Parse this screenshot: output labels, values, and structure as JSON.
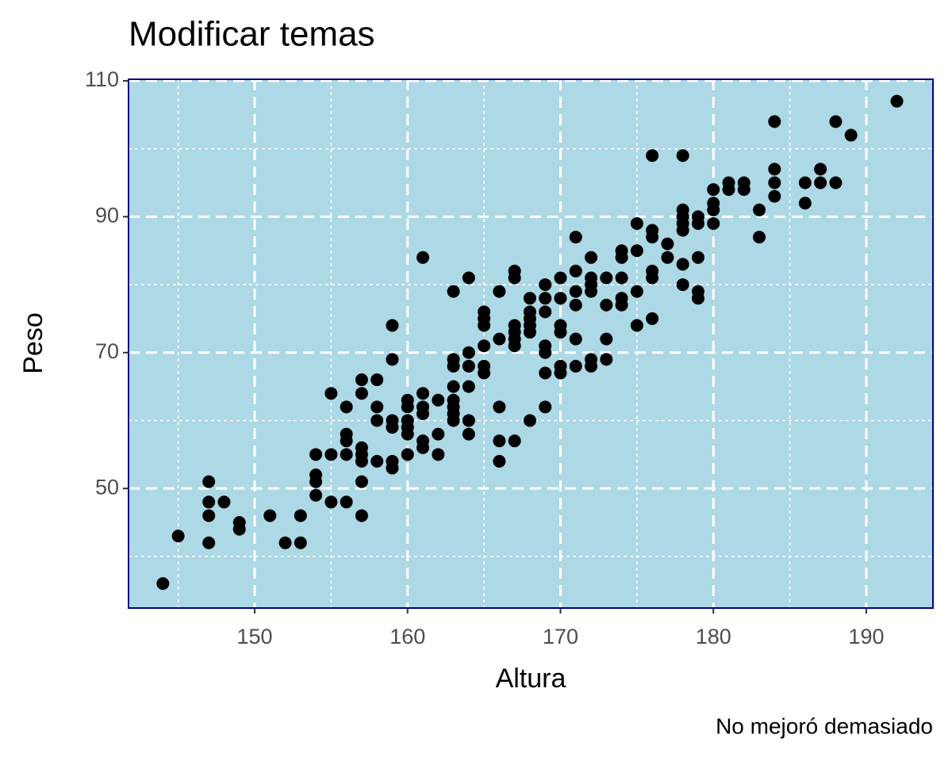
{
  "chart_data": {
    "type": "scatter",
    "title": "Modificar temas",
    "x_label": "Altura",
    "y_label": "Peso",
    "caption": "No mejoró demasiado",
    "color": "#000000",
    "background": "#add8e6",
    "border_color": "#000080",
    "grid": true,
    "minor_grid": true,
    "xlim": [
      141.75,
      194.36
    ],
    "ylim": [
      32.4,
      110.23
    ],
    "xticks": [
      150,
      160,
      170,
      180,
      190
    ],
    "yticks": [
      50,
      70,
      90,
      110
    ],
    "x": [
      144,
      145,
      147,
      147,
      147,
      147,
      148,
      149,
      149,
      151,
      152,
      153,
      153,
      154,
      154,
      154,
      154,
      155,
      155,
      155,
      156,
      156,
      156,
      156,
      156,
      157,
      157,
      157,
      157,
      157,
      157,
      157,
      158,
      158,
      158,
      158,
      159,
      159,
      159,
      159,
      159,
      159,
      160,
      160,
      160,
      160,
      160,
      160,
      161,
      161,
      161,
      161,
      161,
      161,
      162,
      162,
      162,
      163,
      163,
      163,
      163,
      163,
      163,
      163,
      163,
      164,
      164,
      164,
      164,
      164,
      164,
      165,
      165,
      165,
      165,
      165,
      165,
      166,
      166,
      166,
      166,
      166,
      167,
      167,
      167,
      167,
      167,
      167,
      167,
      168,
      168,
      168,
      168,
      168,
      168,
      169,
      169,
      169,
      169,
      169,
      169,
      169,
      170,
      170,
      170,
      170,
      170,
      170,
      171,
      171,
      171,
      171,
      171,
      171,
      172,
      172,
      172,
      172,
      172,
      172,
      173,
      173,
      173,
      173,
      174,
      174,
      174,
      174,
      174,
      175,
      175,
      175,
      175,
      176,
      176,
      176,
      176,
      176,
      176,
      177,
      177,
      178,
      178,
      178,
      178,
      178,
      178,
      178,
      179,
      179,
      179,
      179,
      179,
      180,
      180,
      180,
      180,
      181,
      181,
      182,
      182,
      183,
      183,
      184,
      184,
      184,
      184,
      186,
      186,
      187,
      187,
      188,
      188,
      189,
      192
    ],
    "y": [
      36,
      43,
      51,
      48,
      46,
      42,
      48,
      45,
      44,
      46,
      42,
      42,
      46,
      55,
      52,
      51,
      49,
      64,
      55,
      48,
      62,
      58,
      57,
      55,
      48,
      66,
      64,
      56,
      55,
      54,
      51,
      46,
      66,
      62,
      60,
      54,
      74,
      69,
      60,
      59,
      54,
      53,
      63,
      62,
      60,
      59,
      58,
      55,
      84,
      64,
      62,
      61,
      57,
      56,
      63,
      58,
      55,
      79,
      69,
      68,
      65,
      63,
      62,
      61,
      60,
      81,
      70,
      68,
      65,
      60,
      58,
      76,
      75,
      74,
      71,
      68,
      67,
      79,
      72,
      62,
      57,
      54,
      82,
      81,
      74,
      73,
      72,
      71,
      57,
      78,
      76,
      75,
      74,
      73,
      60,
      80,
      78,
      76,
      71,
      70,
      67,
      62,
      81,
      78,
      74,
      73,
      68,
      67,
      87,
      82,
      79,
      77,
      72,
      68,
      84,
      81,
      80,
      79,
      69,
      68,
      81,
      77,
      72,
      69,
      85,
      84,
      81,
      78,
      77,
      89,
      85,
      79,
      74,
      99,
      88,
      87,
      82,
      81,
      75,
      86,
      84,
      99,
      91,
      90,
      89,
      88,
      83,
      80,
      90,
      89,
      84,
      79,
      78,
      94,
      92,
      91,
      89,
      95,
      94,
      95,
      94,
      91,
      87,
      104,
      97,
      95,
      93,
      95,
      92,
      97,
      95,
      104,
      95,
      102,
      107
    ]
  }
}
